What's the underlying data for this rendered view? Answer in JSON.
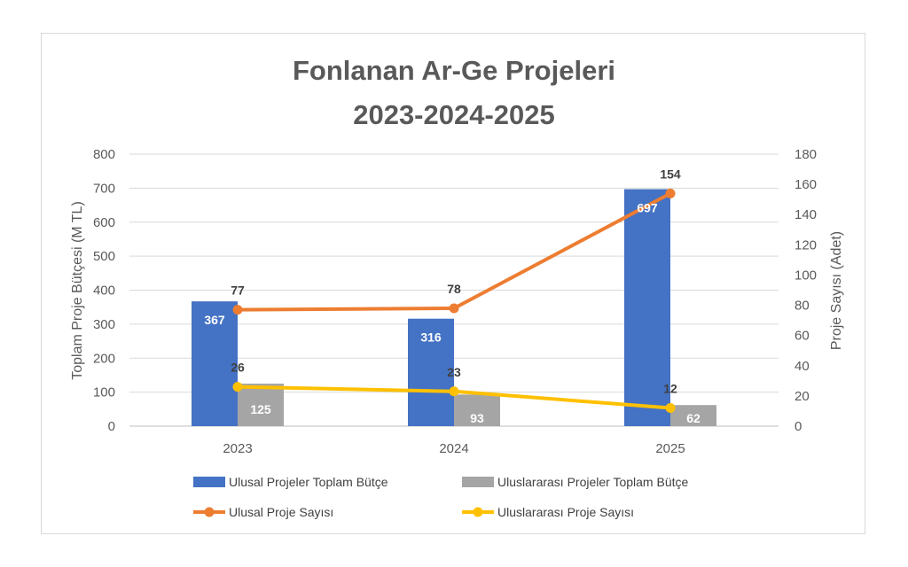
{
  "chart_data": {
    "type": "bar",
    "title_lines": [
      "Fonlanan Ar-Ge Projeleri",
      "2023-2024-2025"
    ],
    "categories": [
      "2023",
      "2024",
      "2025"
    ],
    "y_left": {
      "label": "Toplam Proje Bütçesi (M TL)",
      "min": 0,
      "max": 800,
      "step": 100
    },
    "y_right": {
      "label": "Proje Sayısı (Adet)",
      "min": 0,
      "max": 180,
      "step": 20
    },
    "bar_series": [
      {
        "name": "Ulusal Projeler Toplam Bütçe",
        "values": [
          367,
          316,
          697
        ],
        "color": "#4472c4"
      },
      {
        "name": "Uluslararası Projeler Toplam Bütçe",
        "values": [
          125,
          93,
          62
        ],
        "color": "#a5a5a5"
      }
    ],
    "line_series": [
      {
        "name": "Ulusal Proje Sayısı",
        "values": [
          77,
          78,
          154
        ],
        "color": "#ed7d31",
        "axis": "right"
      },
      {
        "name": "Uluslararası Proje Sayısı",
        "values": [
          26,
          23,
          12
        ],
        "color": "#ffc000",
        "axis": "right"
      }
    ],
    "grid": true,
    "legend_position": "bottom"
  }
}
